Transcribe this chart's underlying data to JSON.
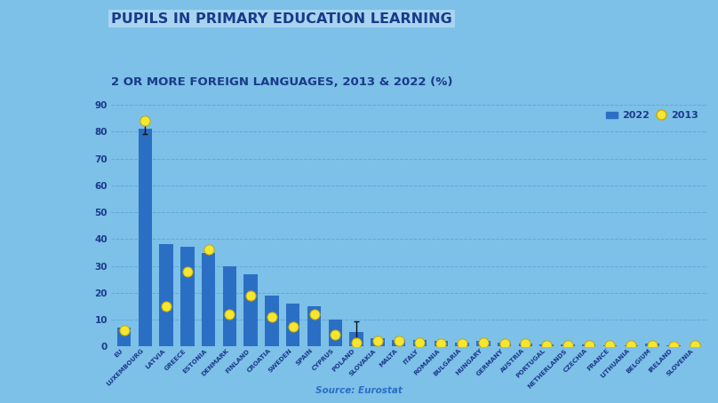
{
  "title_line1": "PUPILS IN PRIMARY EDUCATION LEARNING",
  "title_line2": "2 OR MORE FOREIGN LANGUAGES, 2013 & 2022 (%)",
  "source": "Source: Eurostat",
  "background_color": "#7dc0e8",
  "bar_color": "#2b6fc4",
  "dot_color": "#f5e632",
  "dot_edge_color": "#c8a800",
  "title_color": "#1a3a8a",
  "title_highlight_color": "#a8d4f0",
  "categories": [
    "EU",
    "LUXEMBOURG",
    "LATVIA",
    "GREECE",
    "ESTONIA",
    "DENMARK",
    "FINLAND",
    "CROATIA",
    "SWEDEN",
    "SPAIN",
    "CYPRUS",
    "POLAND",
    "SLOVAKIA",
    "MALTA",
    "ITALY",
    "ROMANIA",
    "BULGARIA",
    "HUNGARY",
    "GERMANY",
    "AUSTRIA",
    "PORTUGAL",
    "NETHERLANDS",
    "CZECHIA",
    "FRANCE",
    "LITHUANIA",
    "BELGIUM",
    "IRELAND",
    "SLOVENIA"
  ],
  "values_2022": [
    7,
    81,
    38,
    37,
    35,
    30,
    27,
    19,
    16,
    15,
    10,
    5.5,
    3,
    2.5,
    2.5,
    2,
    1.5,
    2,
    1.5,
    1,
    0.8,
    0.7,
    0.7,
    0.5,
    0.5,
    1.2,
    0.4,
    0.3
  ],
  "values_2013": [
    6,
    84,
    15,
    28,
    36,
    12,
    19,
    11,
    7.5,
    12,
    4.5,
    1.5,
    2,
    2,
    1.5,
    1,
    1,
    1.5,
    1,
    1,
    0.5,
    0.5,
    0.5,
    0.5,
    0.5,
    0.5,
    0.3,
    0.5
  ],
  "error_bar_lux_lo": 2,
  "error_bar_lux_hi": 2,
  "error_bar_poland_lo": 4,
  "error_bar_poland_hi": 4,
  "ylim": [
    0,
    90
  ],
  "yticks": [
    0,
    10,
    20,
    30,
    40,
    50,
    60,
    70,
    80,
    90
  ],
  "grid_color": "#5aabda",
  "tick_label_color": "#1a3a8a",
  "legend_label_2022": "2022",
  "legend_label_2013": "2013",
  "source_color": "#2b6fc4"
}
